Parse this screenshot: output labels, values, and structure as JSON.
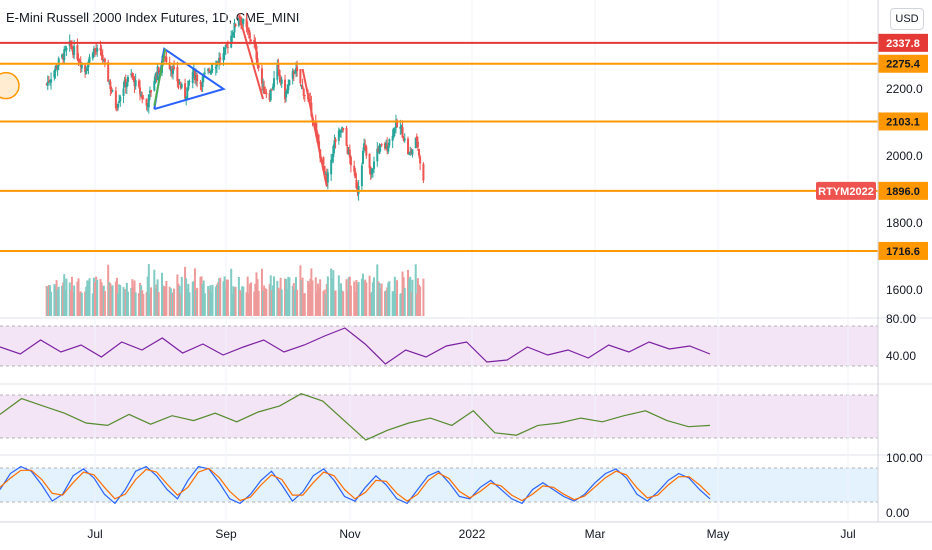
{
  "header": {
    "title": "E-Mini Russell 2000 Index Futures, 1D, CME_MINI",
    "currency_button": "USD"
  },
  "colors": {
    "up": "#26a69a",
    "down": "#ef5350",
    "resistance": "#e53935",
    "support": "#ff9800",
    "triangle": "#2962ff",
    "arrow_green": "#4caf50",
    "rsi": "#7b1fa2",
    "osc2": "#558b2f",
    "stoch_k": "#2962ff",
    "stoch_d": "#ff6d00",
    "panel_purple": "#f3e5f5",
    "panel_blue": "#e3f2fd",
    "symbol_tag": "#ef5350"
  },
  "chart_data": [
    {
      "type": "candlestick",
      "title": "E-Mini Russell 2000 Index Futures, 1D, CME_MINI",
      "symbol_label": "RTYM2022",
      "x_ticks": [
        "Jul",
        "Sep",
        "Nov",
        "2022",
        "Mar",
        "May",
        "Jul"
      ],
      "y_ticks": [
        "2200.0",
        "2000.0",
        "1800.0",
        "1600.0"
      ],
      "y_range": [
        1590,
        2420
      ],
      "horizontal_levels": [
        {
          "value": "2337.8",
          "color": "#e53935"
        },
        {
          "value": "2275.4",
          "color": "#ff9800"
        },
        {
          "value": "2103.1",
          "color": "#ff9800"
        },
        {
          "value": "1896.0",
          "color": "#ff9800"
        },
        {
          "value": "1716.6",
          "color": "#ff9800"
        }
      ],
      "last_price": "1896.0",
      "close_path": [
        [
          "2021-05-17",
          2215
        ],
        [
          "2021-05-28",
          2280
        ],
        [
          "2021-06-07",
          2330
        ],
        [
          "2021-06-14",
          2300
        ],
        [
          "2021-06-21",
          2255
        ],
        [
          "2021-06-28",
          2320
        ],
        [
          "2021-07-06",
          2300
        ],
        [
          "2021-07-19",
          2150
        ],
        [
          "2021-07-26",
          2210
        ],
        [
          "2021-08-02",
          2240
        ],
        [
          "2021-08-16",
          2150
        ],
        [
          "2021-08-23",
          2230
        ],
        [
          "2021-09-01",
          2300
        ],
        [
          "2021-09-08",
          2260
        ],
        [
          "2021-09-20",
          2180
        ],
        [
          "2021-09-27",
          2250
        ],
        [
          "2021-10-04",
          2220
        ],
        [
          "2021-10-15",
          2270
        ],
        [
          "2021-10-25",
          2300
        ],
        [
          "2021-11-08",
          2420
        ],
        [
          "2021-11-22",
          2330
        ],
        [
          "2021-11-30",
          2200
        ],
        [
          "2021-12-06",
          2180
        ],
        [
          "2021-12-13",
          2260
        ],
        [
          "2021-12-20",
          2180
        ],
        [
          "2021-12-29",
          2260
        ],
        [
          "2022-01-05",
          2200
        ],
        [
          "2022-01-12",
          2150
        ],
        [
          "2022-01-20",
          2020
        ],
        [
          "2022-01-27",
          1920
        ],
        [
          "2022-02-03",
          2040
        ],
        [
          "2022-02-10",
          2080
        ],
        [
          "2022-02-18",
          1980
        ],
        [
          "2022-02-24",
          1900
        ],
        [
          "2022-03-02",
          2030
        ],
        [
          "2022-03-08",
          1940
        ],
        [
          "2022-03-14",
          2020
        ],
        [
          "2022-03-23",
          2030
        ],
        [
          "2022-03-30",
          2090
        ],
        [
          "2022-04-05",
          2080
        ],
        [
          "2022-04-12",
          2000
        ],
        [
          "2022-04-19",
          2050
        ],
        [
          "2022-04-25",
          1920
        ]
      ]
    },
    {
      "type": "line",
      "indicator": "oscillator",
      "y_ticks": [
        "80.00",
        "40.00"
      ],
      "series": [
        {
          "values": [
            55,
            48,
            62,
            50,
            57,
            45,
            60,
            52,
            64,
            49,
            58,
            47,
            55,
            62,
            50,
            57,
            66,
            74,
            58,
            38,
            52,
            45,
            56,
            60,
            40,
            42,
            55,
            47,
            52,
            44,
            57,
            50,
            60,
            53,
            56,
            48
          ]
        }
      ]
    },
    {
      "type": "line",
      "indicator": "oscillator",
      "series": [
        {
          "values": [
            55,
            68,
            62,
            56,
            48,
            46,
            55,
            47,
            54,
            50,
            56,
            49,
            57,
            62,
            72,
            66,
            50,
            34,
            42,
            48,
            52,
            46,
            58,
            40,
            38,
            46,
            48,
            52,
            49,
            54,
            58,
            50,
            45,
            46
          ]
        }
      ]
    },
    {
      "type": "line",
      "indicator": "stochastic",
      "y_ticks": [
        "100.00",
        "0.00"
      ],
      "series": [
        {
          "values": [
            40,
            75,
            90,
            80,
            50,
            15,
            30,
            70,
            85,
            65,
            30,
            10,
            40,
            80,
            90,
            70,
            40,
            20,
            60,
            90,
            85,
            55,
            20,
            10,
            30,
            60,
            80,
            50,
            15,
            35,
            70,
            85,
            60,
            25,
            15,
            45,
            70,
            50,
            20,
            10,
            40,
            70,
            80,
            55,
            25,
            20,
            45,
            60,
            40,
            20,
            10,
            40,
            55,
            40,
            25,
            15,
            30,
            55,
            75,
            85,
            65,
            30,
            15,
            35,
            60,
            75,
            65,
            40,
            20
          ]
        },
        {
          "values": [
            45,
            65,
            82,
            82,
            62,
            32,
            28,
            55,
            78,
            72,
            45,
            20,
            30,
            62,
            84,
            78,
            52,
            28,
            45,
            78,
            86,
            66,
            36,
            16,
            24,
            50,
            72,
            62,
            28,
            28,
            55,
            78,
            70,
            40,
            20,
            34,
            60,
            58,
            32,
            15,
            30,
            60,
            76,
            64,
            36,
            22,
            36,
            54,
            48,
            28,
            16,
            30,
            48,
            45,
            30,
            18,
            26,
            46,
            66,
            80,
            72,
            44,
            22,
            28,
            50,
            68,
            68,
            50,
            28
          ]
        }
      ]
    }
  ]
}
